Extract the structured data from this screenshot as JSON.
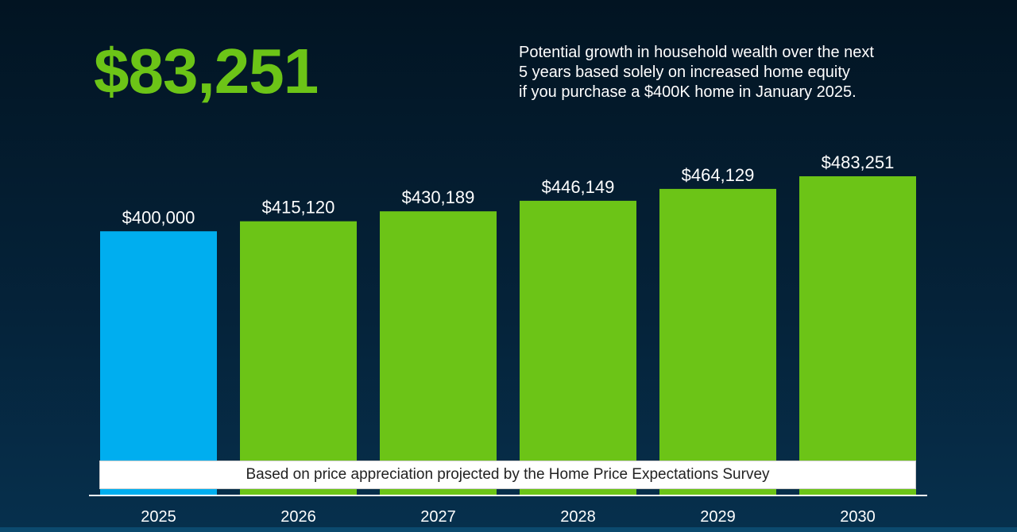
{
  "headline": {
    "value": "$83,251",
    "color": "#6cc417"
  },
  "subtitle": {
    "lines": [
      "Potential growth in household wealth over the next",
      "5 years based solely on increased home equity",
      "if you purchase a $400K home in January 2025."
    ]
  },
  "footnote": "Based on price appreciation projected by the Home Price Expectations Survey",
  "chart_data": {
    "type": "bar",
    "categories": [
      "2025",
      "2026",
      "2027",
      "2028",
      "2029",
      "2030"
    ],
    "values": [
      400000,
      415120,
      430189,
      446149,
      464129,
      483251
    ],
    "value_labels": [
      "$400,000",
      "$415,120",
      "$430,189",
      "$446,149",
      "$464,129",
      "$483,251"
    ],
    "bar_colors": [
      "#00aeef",
      "#6cc417",
      "#6cc417",
      "#6cc417",
      "#6cc417",
      "#6cc417"
    ],
    "title": "",
    "xlabel": "",
    "ylabel": "",
    "ylim": [
      0,
      483251
    ],
    "grid": false,
    "legend": "none"
  }
}
